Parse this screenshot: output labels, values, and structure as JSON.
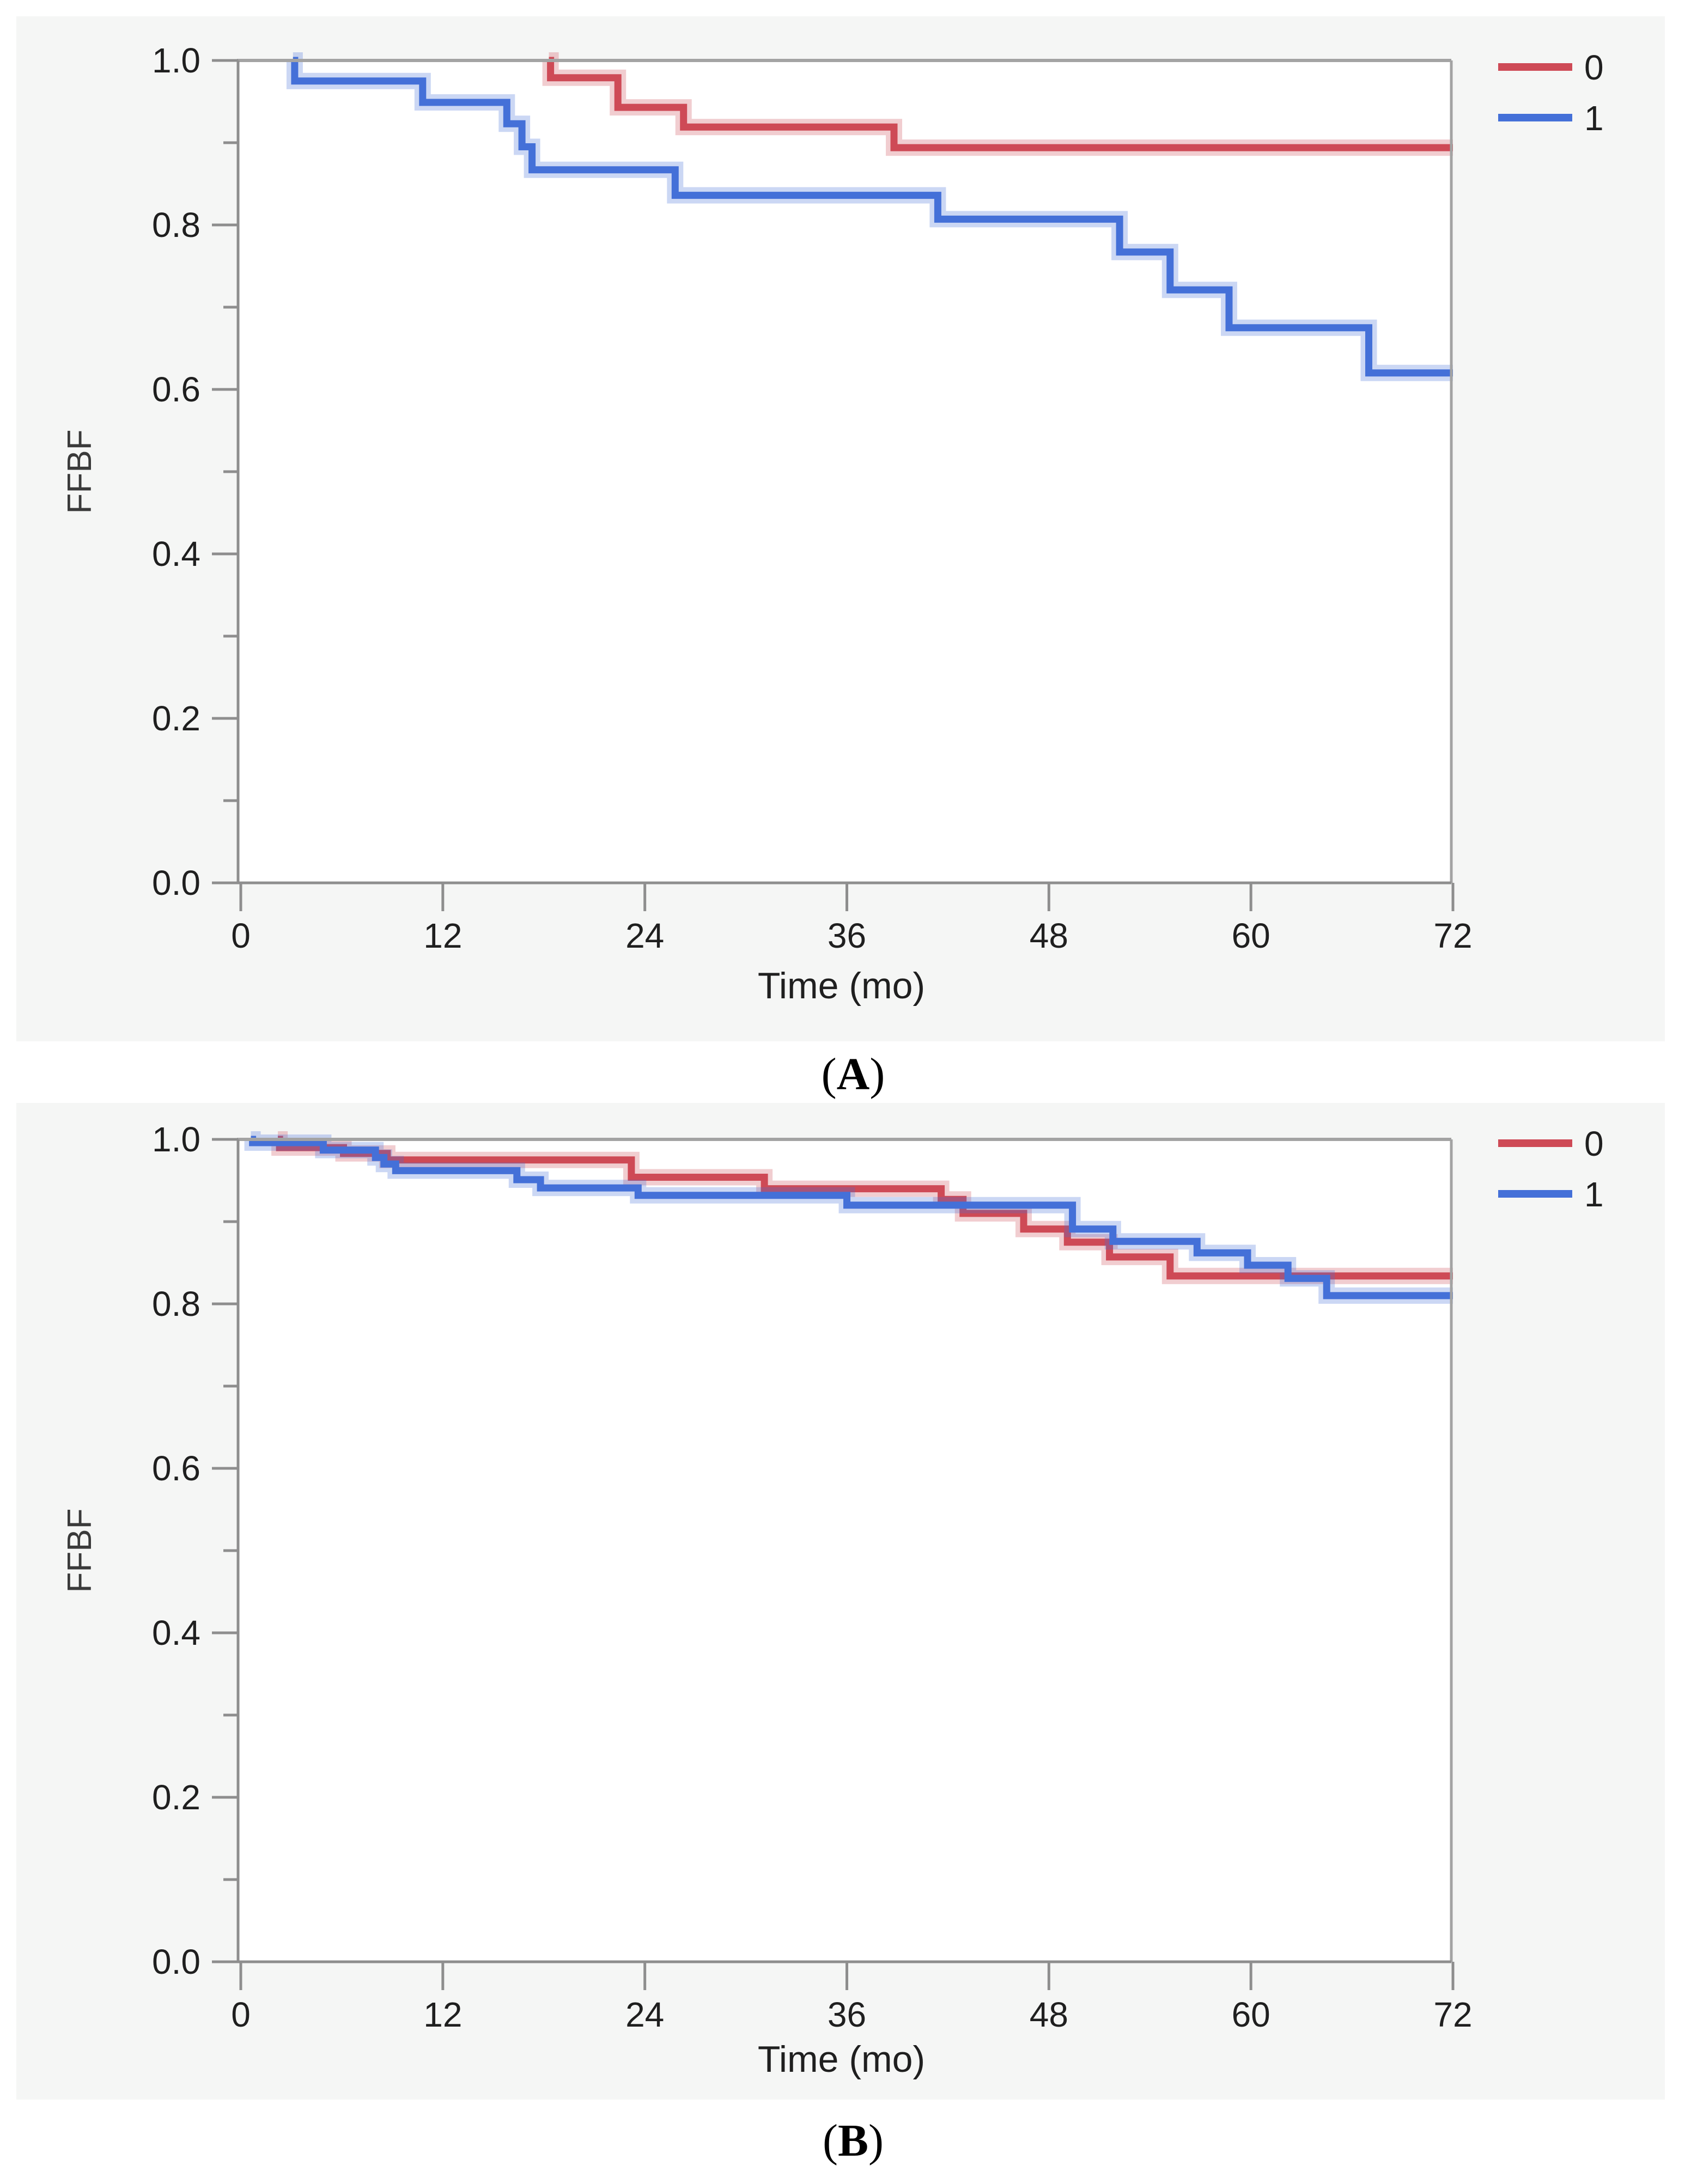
{
  "figure": {
    "background": "#ffffff",
    "panel_background": "#f5f6f5",
    "plot_background": "#ffffff",
    "frame_color": "#a3a3a3",
    "axis_color": "#8e8e8e",
    "text_color": "#1f1f1f",
    "muted_text_color": "#3a3a3a"
  },
  "captions": {
    "a": {
      "open": "(",
      "letter": "A",
      "close": ")"
    },
    "b": {
      "open": "(",
      "letter": "B",
      "close": ")"
    }
  },
  "chart_data": [
    {
      "id": "A",
      "type": "line",
      "subtype": "kaplan-meier-step",
      "xlabel": "Time (mo)",
      "ylabel": "FFBF",
      "xlim": [
        0,
        72
      ],
      "ylim": [
        0.0,
        1.0
      ],
      "x_ticks": [
        0,
        12,
        24,
        36,
        48,
        60,
        72
      ],
      "y_major_ticks": [
        {
          "label": "1.0",
          "v": 1.0
        },
        {
          "label": "0.8",
          "v": 0.8
        },
        {
          "label": "0.6",
          "v": 0.6
        },
        {
          "label": "0.4",
          "v": 0.4
        },
        {
          "label": "0.2",
          "v": 0.2
        },
        {
          "label": "0.0",
          "v": 0.0
        }
      ],
      "y_minor_ticks": [
        0.9,
        0.7,
        0.5,
        0.3,
        0.1
      ],
      "grid": "top-frame-only",
      "legend_position": "top-right-outside",
      "legend": [
        {
          "label": "0",
          "color": "#ce4a56"
        },
        {
          "label": "1",
          "color": "#4470d8"
        }
      ],
      "series": [
        {
          "name": "0",
          "color": "#ce4a56",
          "steps": [
            [
              18.3,
              1.0
            ],
            [
              18.4,
              0.979
            ],
            [
              22.4,
              0.943
            ],
            [
              26.3,
              0.919
            ],
            [
              38.8,
              0.894
            ]
          ],
          "end_time": 72
        },
        {
          "name": "1",
          "color": "#4470d8",
          "steps": [
            [
              3.1,
              1.0
            ],
            [
              3.2,
              0.975
            ],
            [
              10.8,
              0.949
            ],
            [
              15.8,
              0.923
            ],
            [
              16.7,
              0.895
            ],
            [
              17.3,
              0.867
            ],
            [
              25.8,
              0.836
            ],
            [
              41.4,
              0.807
            ],
            [
              52.2,
              0.767
            ],
            [
              55.2,
              0.721
            ],
            [
              58.7,
              0.675
            ],
            [
              67.0,
              0.62
            ]
          ],
          "end_time": 72
        }
      ]
    },
    {
      "id": "B",
      "type": "line",
      "subtype": "kaplan-meier-step",
      "xlabel": "Time (mo)",
      "ylabel": "FFBF",
      "xlim": [
        0,
        72
      ],
      "ylim": [
        0.0,
        1.0
      ],
      "x_ticks": [
        0,
        12,
        24,
        36,
        48,
        60,
        72
      ],
      "y_major_ticks": [
        {
          "label": "1.0",
          "v": 1.0
        },
        {
          "label": "0.8",
          "v": 0.8
        },
        {
          "label": "0.6",
          "v": 0.6
        },
        {
          "label": "0.4",
          "v": 0.4
        },
        {
          "label": "0.2",
          "v": 0.2
        },
        {
          "label": "0.0",
          "v": 0.0
        }
      ],
      "y_minor_ticks": [
        0.9,
        0.7,
        0.5,
        0.3,
        0.1
      ],
      "grid": "top-frame-only",
      "legend_position": "top-right-outside",
      "legend": [
        {
          "label": "0",
          "color": "#ce4a56"
        },
        {
          "label": "1",
          "color": "#4470d8"
        }
      ],
      "series": [
        {
          "name": "0",
          "color": "#ce4a56",
          "steps": [
            [
              2.2,
              1.0
            ],
            [
              2.3,
              0.99
            ],
            [
              6.1,
              0.983
            ],
            [
              8.7,
              0.975
            ],
            [
              23.2,
              0.954
            ],
            [
              31.1,
              0.94
            ],
            [
              41.6,
              0.927
            ],
            [
              42.9,
              0.91
            ],
            [
              46.5,
              0.891
            ],
            [
              49.1,
              0.875
            ],
            [
              51.6,
              0.857
            ],
            [
              55.2,
              0.834
            ]
          ],
          "end_time": 72
        },
        {
          "name": "1",
          "color": "#4470d8",
          "steps": [
            [
              0.6,
              1.0
            ],
            [
              0.7,
              0.996
            ],
            [
              4.9,
              0.987
            ],
            [
              8.0,
              0.978
            ],
            [
              8.5,
              0.97
            ],
            [
              9.2,
              0.962
            ],
            [
              16.4,
              0.951
            ],
            [
              17.8,
              0.941
            ],
            [
              23.6,
              0.932
            ],
            [
              36.0,
              0.92
            ],
            [
              49.4,
              0.891
            ],
            [
              51.8,
              0.876
            ],
            [
              56.8,
              0.862
            ],
            [
              59.8,
              0.847
            ],
            [
              62.2,
              0.831
            ],
            [
              64.5,
              0.81
            ]
          ],
          "end_time": 72
        }
      ]
    }
  ]
}
